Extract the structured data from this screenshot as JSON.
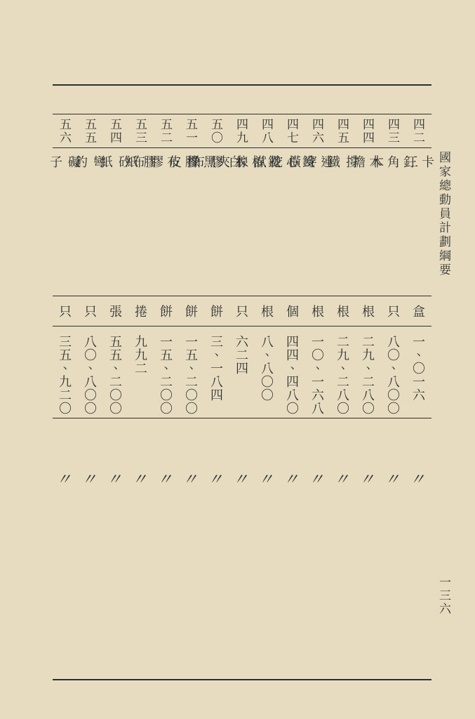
{
  "side_title": "國家總動員計劃綱要",
  "page_number": "一三六",
  "columns": [
    {
      "idx_top": "四",
      "idx_bot": "二",
      "item_top": "卡",
      "item_bot": "釘",
      "unit": "盒",
      "qty": "一、〇一六"
    },
    {
      "idx_top": "四",
      "idx_bot": "三",
      "item_top": "三",
      "item_mid": "角",
      "item_bot": "木",
      "unit": "只",
      "qty": "八〇、八〇〇"
    },
    {
      "idx_top": "四",
      "idx_bot": "四",
      "item_top": "木",
      "item_bot": "擔",
      "unit": "根",
      "qty": "二九、二八〇"
    },
    {
      "idx_top": "四",
      "idx_bot": "五",
      "item_top": "撐",
      "item_bot": "鐵",
      "unit": "根",
      "qty": "二九、二八〇"
    },
    {
      "idx_top": "四",
      "idx_bot": "六",
      "item_top": "連",
      "item_bot": "鐵",
      "unit": "根",
      "qty": "一〇、一六八"
    },
    {
      "idx_top": "四",
      "idx_bot": "七",
      "item_top": "穿",
      "item_mid": "心",
      "item_bot": "鐵",
      "unit": "個",
      "qty": "四四、四八〇"
    },
    {
      "idx_top": "四",
      "idx_bot": "八",
      "item_top": "橫",
      "item_mid": "挖",
      "item_mid2": "椿",
      "item_bot": "木",
      "unit": "根",
      "qty": "八、八〇〇"
    },
    {
      "idx_top": "四",
      "idx_bot": "九",
      "item_top": "試",
      "item_mid": "線",
      "item_bot": "夾",
      "unit": "只",
      "qty": "六二四"
    },
    {
      "idx_top": "五",
      "idx_bot": "〇",
      "item_top": "白",
      "item_mid": "膠",
      "item_bot": "布",
      "unit": "餅",
      "qty": "三、一八四"
    },
    {
      "idx_top": "五",
      "idx_bot": "一",
      "item_top": "黑",
      "item_mid": "膠",
      "item_bot": "布",
      "unit": "餅",
      "qty": "一五、二〇〇"
    },
    {
      "idx_top": "五",
      "idx_bot": "二",
      "item_top": "橡",
      "item_mid": "皮",
      "item_mid2": "膠",
      "item_bot": "布",
      "unit": "餅",
      "qty": "一五、二〇〇"
    },
    {
      "idx_top": "五",
      "idx_bot": "三",
      "item_top": "膠",
      "item_bot": "紙",
      "unit": "捲",
      "qty": "九九二"
    },
    {
      "idx_top": "五",
      "idx_bot": "四",
      "item_top": "矽",
      "item_bot": "紙",
      "unit": "張",
      "qty": "五五、二〇〇"
    },
    {
      "idx_top": "五",
      "idx_bot": "五",
      "item_top": "彎",
      "item_bot": "釣",
      "unit": "只",
      "qty": "八〇、八〇〇"
    },
    {
      "idx_top": "五",
      "idx_bot": "六",
      "item_top": "礙",
      "item_bot": "子",
      "unit": "只",
      "qty": "三五、九二〇"
    }
  ],
  "ditto": "〃",
  "colors": {
    "bg": "#e8dcc0",
    "ink": "#2a3030"
  }
}
